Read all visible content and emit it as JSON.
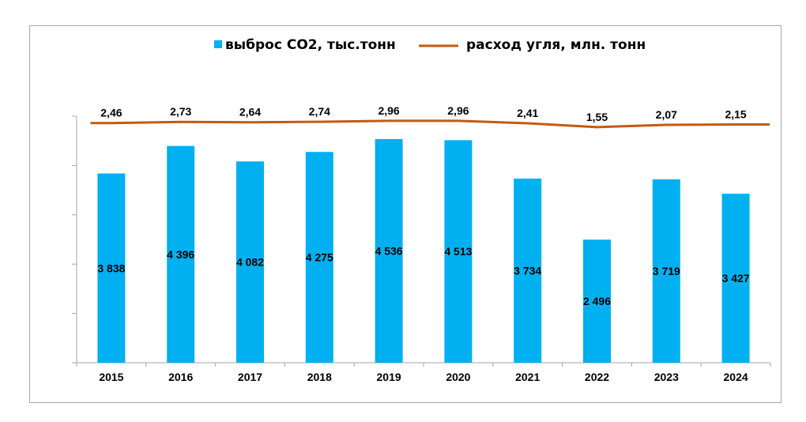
{
  "chart_data": {
    "type": "bar",
    "title": "",
    "xlabel": "",
    "ylabel": "",
    "categories": [
      "2015",
      "2016",
      "2017",
      "2018",
      "2019",
      "2020",
      "2021",
      "2022",
      "2023",
      "2024"
    ],
    "series": [
      {
        "name": "выброс CO2, тыс.тонн",
        "type": "bar",
        "axis": "primary",
        "color": "#00b0f0",
        "values": [
          3838,
          4396,
          4082,
          4275,
          4536,
          4513,
          3734,
          2496,
          3719,
          3427
        ],
        "labels": [
          "3 838",
          "4 396",
          "4 082",
          "4 275",
          "4 536",
          "4 513",
          "3 734",
          "2 496",
          "3 719",
          "3 427"
        ]
      },
      {
        "name": "расход угля, млн. тонн",
        "type": "line",
        "axis": "secondary",
        "color": "#c55a11",
        "values": [
          2.46,
          2.73,
          2.64,
          2.74,
          2.96,
          2.96,
          2.41,
          1.55,
          2.07,
          2.15
        ],
        "labels": [
          "2,46",
          "2,73",
          "2,64",
          "2,74",
          "2,96",
          "2,96",
          "2,41",
          "1,55",
          "2,07",
          "2,15"
        ]
      }
    ],
    "ylim": [
      0,
      5000
    ],
    "yticks": [
      0,
      1000,
      2000,
      3000,
      4000,
      5000
    ],
    "ytick_labels_visible": false,
    "y2lim": [
      -51,
      4
    ],
    "grid": false,
    "legend": "top-center"
  }
}
